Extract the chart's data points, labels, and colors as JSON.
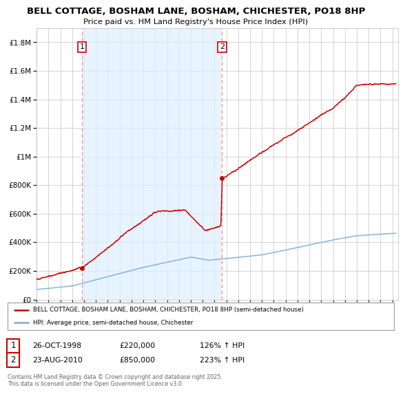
{
  "title": "BELL COTTAGE, BOSHAM LANE, BOSHAM, CHICHESTER, PO18 8HP",
  "subtitle": "Price paid vs. HM Land Registry's House Price Index (HPI)",
  "legend_line1": "BELL COTTAGE, BOSHAM LANE, BOSHAM, CHICHESTER, PO18 8HP (semi-detached house)",
  "legend_line2": "HPI: Average price, semi-detached house, Chichester",
  "sale1_date": "26-OCT-1998",
  "sale1_price": "£220,000",
  "sale1_hpi": "126% ↑ HPI",
  "sale2_date": "23-AUG-2010",
  "sale2_price": "£850,000",
  "sale2_hpi": "223% ↑ HPI",
  "footer": "Contains HM Land Registry data © Crown copyright and database right 2025.\nThis data is licensed under the Open Government Licence v3.0.",
  "red_color": "#cc0000",
  "blue_color": "#7aaadd",
  "dashed_color": "#ff8888",
  "bg_color": "#ffffff",
  "grid_color": "#cccccc",
  "shade_color": "#ddeeff",
  "sale1_year": 1998.82,
  "sale2_year": 2010.64,
  "sale1_price_val": 220000,
  "sale2_price_val": 850000,
  "xmin": 1995,
  "xmax": 2025.5,
  "ymin": 0,
  "ymax": 1900000,
  "yticks": [
    0,
    200000,
    400000,
    600000,
    800000,
    1000000,
    1200000,
    1400000,
    1600000,
    1800000
  ]
}
